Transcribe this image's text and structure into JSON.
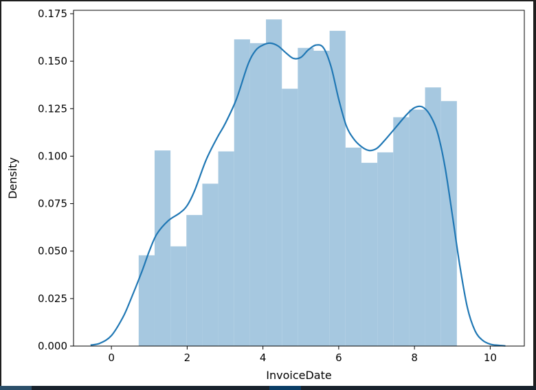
{
  "chart_data": {
    "type": "bar",
    "xlabel": "InvoiceDate",
    "ylabel": "Density",
    "xlim": [
      -1.0,
      10.9
    ],
    "ylim": [
      0,
      0.1768
    ],
    "x_ticks": [
      0,
      2,
      4,
      6,
      8,
      10
    ],
    "y_ticks": [
      0.0,
      0.025,
      0.05,
      0.075,
      0.1,
      0.125,
      0.15,
      0.175
    ],
    "y_tick_labels": [
      "0.000",
      "0.025",
      "0.050",
      "0.075",
      "0.100",
      "0.125",
      "0.150",
      "0.175"
    ],
    "x_tick_labels": [
      "0",
      "2",
      "4",
      "6",
      "8",
      "10"
    ],
    "histogram": {
      "color": "#a6c8e0",
      "bin_edges": [
        0.72,
        1.14,
        1.56,
        1.98,
        2.4,
        2.82,
        3.24,
        3.66,
        4.08,
        4.5,
        4.92,
        5.34,
        5.76,
        6.18,
        6.6,
        7.02,
        7.44,
        7.86,
        8.28,
        8.7,
        9.12
      ],
      "values": [
        0.0478,
        0.103,
        0.0525,
        0.069,
        0.0855,
        0.1025,
        0.1615,
        0.1595,
        0.172,
        0.1355,
        0.157,
        0.1555,
        0.166,
        0.1045,
        0.0965,
        0.102,
        0.1205,
        0.1245,
        0.1362,
        0.129
      ]
    },
    "kde": {
      "color": "#1f77b4",
      "x": [
        -0.55,
        -0.3,
        0.0,
        0.3,
        0.5,
        0.8,
        1.0,
        1.2,
        1.5,
        1.8,
        2.0,
        2.2,
        2.5,
        2.8,
        3.0,
        3.3,
        3.6,
        3.8,
        4.0,
        4.2,
        4.4,
        4.6,
        4.8,
        5.0,
        5.2,
        5.4,
        5.6,
        5.8,
        6.0,
        6.2,
        6.4,
        6.6,
        6.8,
        7.0,
        7.2,
        7.5,
        7.8,
        8.0,
        8.2,
        8.4,
        8.6,
        8.8,
        9.0,
        9.2,
        9.4,
        9.6,
        9.8,
        10.0,
        10.2,
        10.4
      ],
      "y": [
        0.0005,
        0.0015,
        0.0055,
        0.015,
        0.024,
        0.039,
        0.05,
        0.059,
        0.066,
        0.07,
        0.074,
        0.082,
        0.098,
        0.11,
        0.117,
        0.13,
        0.148,
        0.1555,
        0.1585,
        0.1595,
        0.158,
        0.1545,
        0.1515,
        0.152,
        0.156,
        0.1585,
        0.157,
        0.147,
        0.13,
        0.116,
        0.109,
        0.105,
        0.103,
        0.104,
        0.108,
        0.115,
        0.122,
        0.1255,
        0.126,
        0.122,
        0.113,
        0.095,
        0.069,
        0.042,
        0.02,
        0.008,
        0.003,
        0.001,
        0.0004,
        0.0001
      ]
    }
  }
}
